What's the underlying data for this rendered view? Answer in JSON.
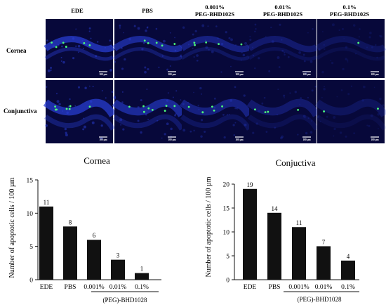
{
  "micrograph_panel": {
    "column_headers": [
      [
        "EDE"
      ],
      [
        "PBS"
      ],
      [
        "0.001%",
        "PEG-BHD102S"
      ],
      [
        "0.01%",
        "PEG-BHD102S"
      ],
      [
        "0.1%",
        "PEG-BHD102S"
      ]
    ],
    "row_labels": [
      "Cornea",
      "Conjunctiva"
    ],
    "scale_bar_label": "100 µm",
    "colors": {
      "background": "#07083a",
      "tissue": "#2a3fd6",
      "apoptotic": "#4dff7a"
    }
  },
  "chart_data": [
    {
      "type": "bar",
      "title": "Cornea",
      "ylabel": "Number of apoptotic cells / 100 µm",
      "xlabel": "",
      "categories": [
        "EDE",
        "PBS",
        "0.001%",
        "0.01%",
        "0.1%"
      ],
      "values": [
        11,
        8,
        6,
        3,
        1
      ],
      "data_labels": [
        "11",
        "8",
        "6",
        "3",
        "1"
      ],
      "ylim": [
        0,
        15
      ],
      "yticks": [
        0,
        5,
        10,
        15
      ],
      "ytick_labels": [
        "0",
        "5",
        "10",
        "15"
      ],
      "group_label": "(PEG)-BHD1028",
      "bar_color": "#111111",
      "grid": false
    },
    {
      "type": "bar",
      "title": "Conjuctiva",
      "ylabel": "Number of apoptotic cells / 100 µm",
      "xlabel": "",
      "categories": [
        "EDE",
        "PBS",
        "0.001%",
        "0.01%",
        "0.1%"
      ],
      "values": [
        19,
        14,
        11,
        7,
        4
      ],
      "data_labels": [
        "19",
        "14",
        "11",
        "7",
        "4"
      ],
      "ylim": [
        0,
        20
      ],
      "yticks": [
        0,
        5,
        10,
        15,
        20
      ],
      "ytick_labels": [
        "0",
        "5",
        "10",
        "15",
        "20"
      ],
      "group_label": "(PEG)-BHD1028",
      "bar_color": "#111111",
      "grid": false
    }
  ]
}
